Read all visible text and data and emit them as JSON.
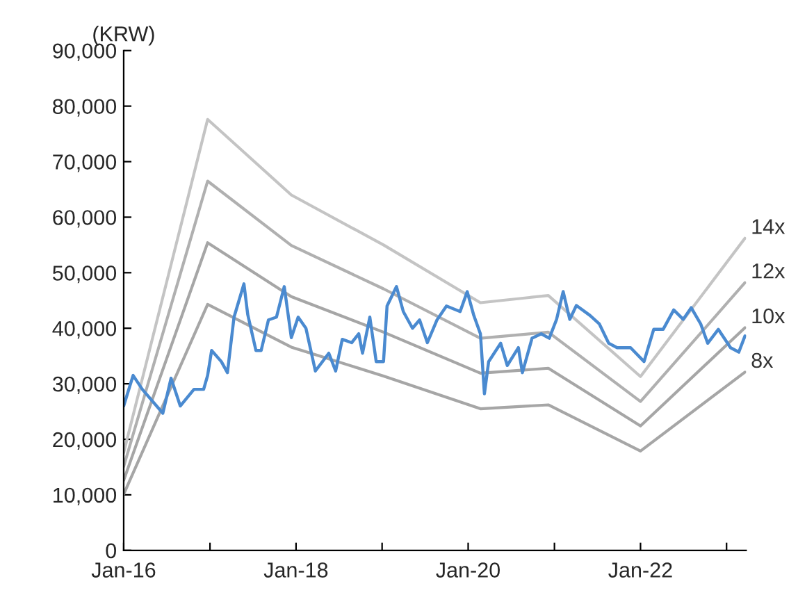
{
  "chart_data": {
    "type": "line",
    "ylabel": "(KRW)",
    "ylim": [
      0,
      90000
    ],
    "yticks": [
      {
        "value": 0,
        "label": "0"
      },
      {
        "value": 10000,
        "label": "10,000"
      },
      {
        "value": 20000,
        "label": "20,000"
      },
      {
        "value": 30000,
        "label": "30,000"
      },
      {
        "value": 40000,
        "label": "40,000"
      },
      {
        "value": 50000,
        "label": "50,000"
      },
      {
        "value": 60000,
        "label": "60,000"
      },
      {
        "value": 70000,
        "label": "70,000"
      },
      {
        "value": 80000,
        "label": "80,000"
      },
      {
        "value": 90000,
        "label": "90,000"
      }
    ],
    "xlim": [
      "2016-01-01",
      "2023-03-25"
    ],
    "xticks": [
      {
        "value": "2016-01-01",
        "label": "Jan-16"
      },
      {
        "value": "2017-01-01",
        "label": null
      },
      {
        "value": "2018-01-01",
        "label": "Jan-18"
      },
      {
        "value": "2019-01-01",
        "label": null
      },
      {
        "value": "2020-01-01",
        "label": "Jan-20"
      },
      {
        "value": "2021-01-01",
        "label": null
      },
      {
        "value": "2022-01-01",
        "label": "Jan-22"
      },
      {
        "value": "2023-01-01",
        "label": null
      }
    ],
    "grid": false,
    "legend": false,
    "series": [
      {
        "color": "#4a8ad0",
        "x": [
          "2016-01-01",
          "2016-02-10",
          "2016-03-20",
          "2016-06-15",
          "2016-07-20",
          "2016-08-28",
          "2016-10-25",
          "2016-12-05",
          "2016-12-22",
          "2017-01-08",
          "2017-02-18",
          "2017-03-16",
          "2017-04-13",
          "2017-05-25",
          "2017-06-10",
          "2017-07-15",
          "2017-08-06",
          "2017-09-06",
          "2017-10-10",
          "2017-11-12",
          "2017-12-12",
          "2018-01-10",
          "2018-02-12",
          "2018-03-24",
          "2018-05-20",
          "2018-06-18",
          "2018-07-16",
          "2018-08-25",
          "2018-09-24",
          "2018-10-10",
          "2018-11-10",
          "2018-12-07",
          "2019-01-07",
          "2019-01-22",
          "2019-03-03",
          "2019-04-01",
          "2019-05-10",
          "2019-06-09",
          "2019-07-12",
          "2019-08-22",
          "2019-10-01",
          "2019-11-28",
          "2019-12-28",
          "2020-01-25",
          "2020-02-22",
          "2020-03-10",
          "2020-03-28",
          "2020-05-18",
          "2020-06-15",
          "2020-08-01",
          "2020-08-18",
          "2020-09-28",
          "2020-11-06",
          "2020-12-10",
          "2021-01-10",
          "2021-02-07",
          "2021-03-07",
          "2021-04-04",
          "2021-06-01",
          "2021-07-10",
          "2021-08-19",
          "2021-09-24",
          "2021-11-20",
          "2022-01-16",
          "2022-02-26",
          "2022-04-07",
          "2022-05-22",
          "2022-07-01",
          "2022-08-04",
          "2022-09-13",
          "2022-10-13",
          "2022-11-27",
          "2023-01-18",
          "2023-02-22",
          "2023-03-20"
        ],
        "values": [
          26000,
          31500,
          29000,
          24700,
          31000,
          26000,
          29000,
          29000,
          31500,
          36000,
          34000,
          32000,
          42000,
          48000,
          42500,
          36000,
          36000,
          41500,
          42000,
          47500,
          38300,
          42000,
          40000,
          32300,
          35500,
          32300,
          38000,
          37400,
          39000,
          35500,
          42000,
          34000,
          34000,
          44000,
          47500,
          43000,
          40000,
          41500,
          37400,
          41500,
          44000,
          43000,
          46600,
          42300,
          39000,
          28200,
          34000,
          37300,
          33300,
          36500,
          32000,
          38200,
          39000,
          38200,
          41600,
          46600,
          41600,
          44100,
          42300,
          40800,
          37300,
          36500,
          36500,
          34000,
          39800,
          39800,
          43300,
          41600,
          43700,
          40800,
          37300,
          39800,
          36500,
          35700,
          38600
        ]
      },
      {
        "name": "14x",
        "color": "#c4c4c4",
        "x": [
          "2016-01-01",
          "2016-12-22",
          "2017-12-12",
          "2019-01-07",
          "2020-02-22",
          "2020-12-06",
          "2022-01-01",
          "2023-03-20"
        ],
        "values": [
          17600,
          77600,
          64000,
          55000,
          44600,
          45900,
          31300,
          56200
        ]
      },
      {
        "name": "12x",
        "color": "#b0b0b0",
        "x": [
          "2016-01-01",
          "2016-12-22",
          "2017-12-12",
          "2019-01-07",
          "2020-02-22",
          "2020-12-06",
          "2022-01-01",
          "2023-03-20"
        ],
        "values": [
          15100,
          66500,
          54900,
          47100,
          38200,
          39300,
          26800,
          48200
        ]
      },
      {
        "name": "10x",
        "color": "#a6a6a6",
        "x": [
          "2016-01-01",
          "2016-12-22",
          "2017-12-12",
          "2019-01-07",
          "2020-02-22",
          "2020-12-06",
          "2022-01-01",
          "2023-03-20"
        ],
        "values": [
          12600,
          55400,
          45700,
          39300,
          31900,
          32800,
          22400,
          40100
        ]
      },
      {
        "name": "8x",
        "color": "#a6a6a6",
        "x": [
          "2016-01-01",
          "2016-12-22",
          "2017-12-12",
          "2019-01-07",
          "2020-02-22",
          "2020-12-06",
          "2022-01-01",
          "2023-03-20"
        ],
        "values": [
          10100,
          44300,
          36600,
          31400,
          25500,
          26200,
          17900,
          32100
        ]
      }
    ]
  }
}
